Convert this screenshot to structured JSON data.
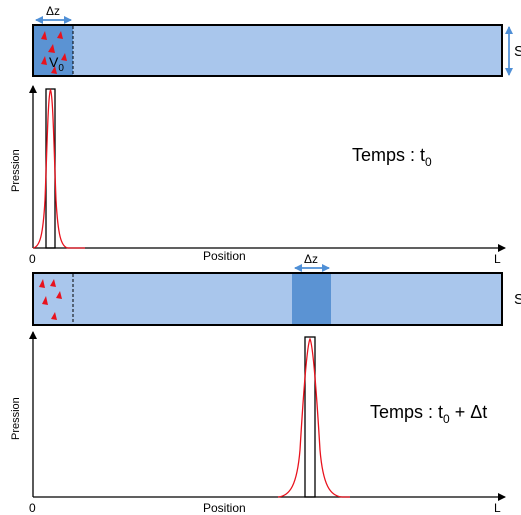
{
  "top": {
    "dz_label": "Δz",
    "s_label": "S",
    "v_label": "V",
    "v_sub": "0",
    "ylabel": "Pression",
    "xlabel": "Position",
    "origin": "0",
    "end": "L",
    "time_prefix": "Temps : t",
    "time_sub": "0",
    "time_suffix": ""
  },
  "bottom": {
    "dz_label": "Δz",
    "s_label": "S",
    "ylabel": "Pression",
    "xlabel": "Position",
    "origin": "0",
    "end": "L",
    "time_prefix": "Temps : t",
    "time_sub": "0",
    "time_suffix": " + Δt"
  },
  "colors": {
    "tube_light": "#a9c6ec",
    "tube_dark": "#5b93d3",
    "arrow_blue": "#4f8fd6",
    "particle": "#e8121d",
    "curve": "#e8121d"
  }
}
